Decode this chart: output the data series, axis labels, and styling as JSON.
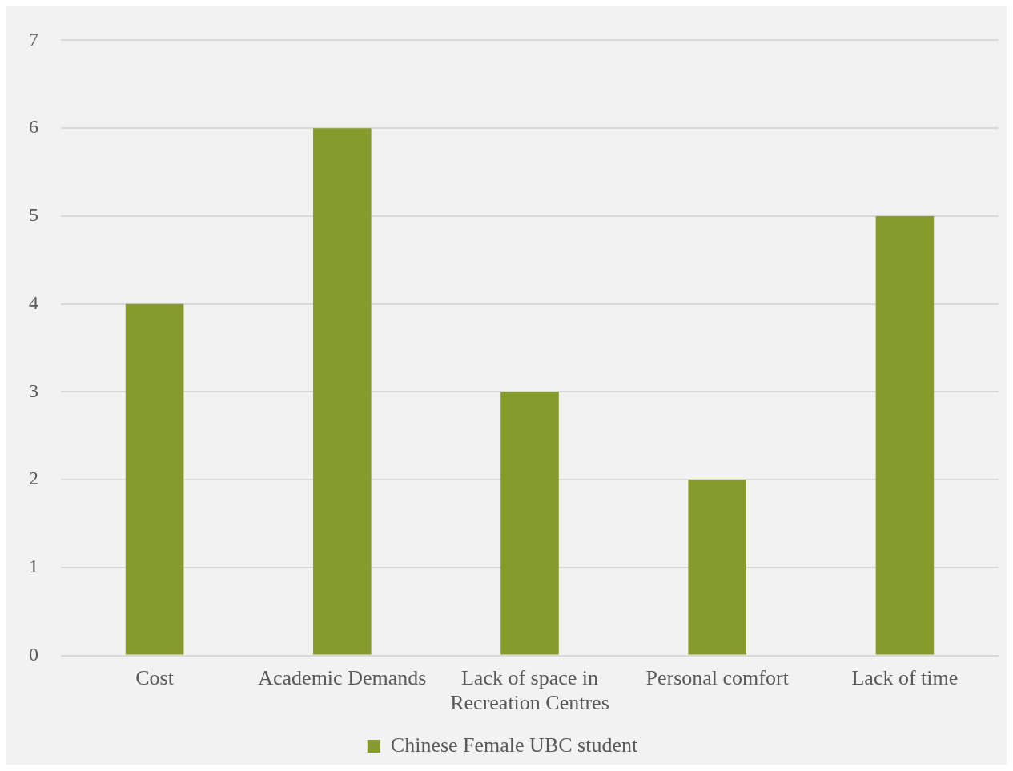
{
  "chart_data": {
    "type": "bar",
    "categories": [
      "Cost",
      "Academic Demands",
      "Lack of space in Recreation Centres",
      "Personal comfort",
      "Lack of time"
    ],
    "series": [
      {
        "name": "Chinese Female UBC student",
        "color": "#869a2e",
        "values": [
          4,
          6,
          3,
          2,
          5
        ]
      }
    ],
    "ylim": [
      0,
      7
    ],
    "yticks": [
      0,
      1,
      2,
      3,
      4,
      5,
      6,
      7
    ],
    "grid": "y",
    "legend": "bottom"
  }
}
